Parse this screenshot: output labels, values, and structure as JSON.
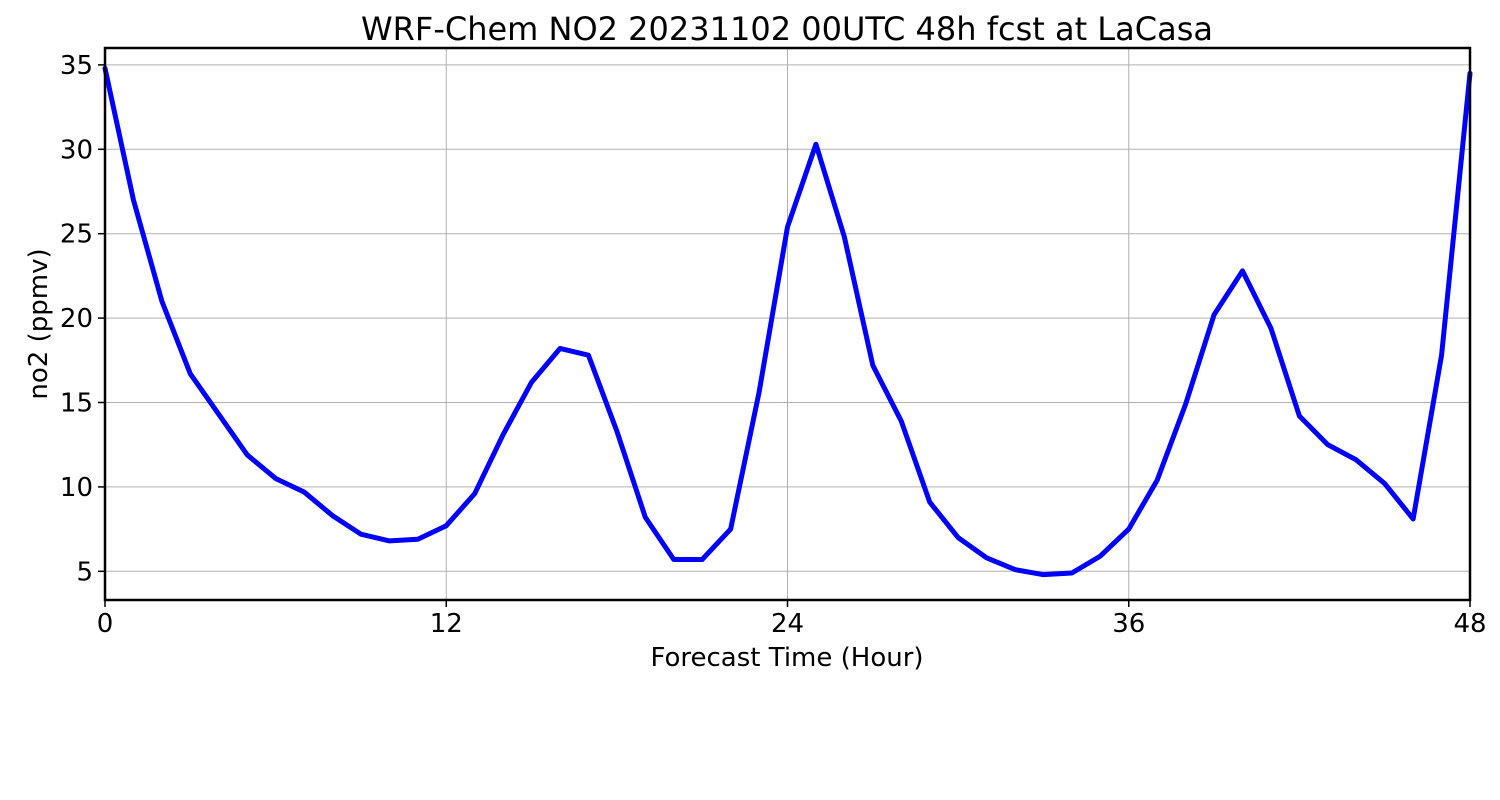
{
  "chart_data": {
    "type": "line",
    "title": "WRF-Chem NO2  20231102 00UTC 48h fcst at LaCasa",
    "xlabel": "Forecast Time (Hour)",
    "ylabel": "no2  (ppmv)",
    "xlim": [
      0,
      48
    ],
    "ylim": [
      3.3,
      36
    ],
    "xticks": [
      0,
      12,
      24,
      36,
      48
    ],
    "yticks": [
      5,
      10,
      15,
      20,
      25,
      30,
      35
    ],
    "grid": true,
    "line_color": "#0000ff",
    "series": [
      {
        "x": [
          0,
          1,
          2,
          3,
          4,
          5,
          6,
          7,
          8,
          9,
          10,
          11,
          12,
          13,
          14,
          15,
          16,
          17,
          18,
          19,
          20,
          21,
          22,
          23,
          24,
          25,
          26,
          27,
          28,
          29,
          30,
          31,
          32,
          33,
          34,
          35,
          36,
          37,
          38,
          39,
          40,
          41,
          42,
          43,
          44,
          45,
          46,
          47,
          48
        ],
        "values": [
          34.8,
          27.0,
          21.0,
          16.7,
          14.3,
          11.9,
          10.5,
          9.7,
          8.3,
          7.2,
          6.8,
          6.9,
          7.7,
          9.6,
          13.1,
          16.2,
          18.2,
          17.8,
          13.3,
          8.2,
          5.7,
          5.7,
          7.5,
          15.6,
          25.4,
          30.3,
          24.8,
          17.2,
          13.9,
          9.1,
          7.0,
          5.8,
          5.1,
          4.8,
          4.9,
          5.9,
          7.5,
          10.4,
          14.9,
          20.2,
          22.8,
          19.4,
          14.2,
          12.5,
          11.6,
          10.2,
          8.1,
          17.8,
          34.5
        ]
      }
    ]
  }
}
